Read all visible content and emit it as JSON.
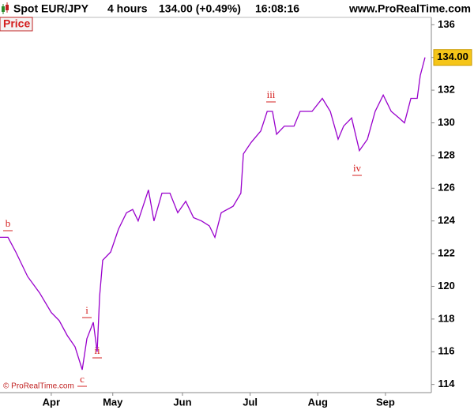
{
  "header": {
    "instrument": "Spot EUR/JPY",
    "timeframe": "4 hours",
    "quote": "134.00 (+0.49%)",
    "time": "16:08:16",
    "site": "www.ProRealTime.com"
  },
  "footer": "© ProRealTime.com",
  "chart_data": {
    "type": "line",
    "x": [
      0,
      3.9,
      7.7,
      13.5,
      19.3,
      25,
      28.9,
      32.8,
      36.6,
      40.1,
      42.4,
      45.5,
      47.4,
      48.6,
      50.1,
      54,
      57.8,
      61.7,
      64.7,
      67.4,
      72.4,
      75.1,
      79,
      82.9,
      86.7,
      90.6,
      94.4,
      98.3,
      102.1,
      104.8,
      107.9,
      113.7,
      117.5,
      118.7,
      122.5,
      127.2,
      130.3,
      132.9,
      134.9,
      138.7,
      143.4,
      146.4,
      152.2,
      157.2,
      161.1,
      164.9,
      167.6,
      171.5,
      175.3,
      179.2,
      183,
      186.9,
      190.8,
      194.6,
      197.3,
      200.4,
      203.5,
      205,
      207.3
    ],
    "series": [
      {
        "name": "Price",
        "color": "#9900cc",
        "values": [
          123.0,
          123.0,
          122.1,
          120.6,
          119.6,
          118.4,
          117.9,
          117.0,
          116.3,
          114.9,
          116.8,
          117.8,
          116.0,
          119.4,
          121.6,
          122.1,
          123.5,
          124.5,
          124.7,
          124.0,
          125.9,
          124.0,
          125.7,
          125.7,
          124.5,
          125.2,
          124.2,
          124.0,
          123.7,
          123.0,
          124.5,
          124.9,
          125.7,
          128.1,
          128.8,
          129.5,
          130.7,
          130.7,
          129.3,
          129.8,
          129.8,
          130.7,
          130.7,
          131.5,
          130.7,
          129.0,
          129.8,
          130.3,
          128.3,
          129.0,
          130.7,
          131.7,
          130.7,
          130.3,
          130.0,
          131.5,
          131.5,
          132.9,
          134.0
        ]
      }
    ],
    "last_value_label": "134.00",
    "annotations": [
      "b",
      "c",
      "i",
      "ii",
      "iii",
      "iv"
    ],
    "xlim": [
      0,
      210
    ],
    "xticks": [
      {
        "value": 25,
        "label": "Apr"
      },
      {
        "value": 55,
        "label": "May"
      },
      {
        "value": 89,
        "label": "Jun"
      },
      {
        "value": 122,
        "label": "Jul"
      },
      {
        "value": 155,
        "label": "Aug"
      },
      {
        "value": 188,
        "label": "Sep"
      }
    ],
    "ylim": [
      113.5,
      136.45
    ],
    "yticks": [
      114,
      116,
      118,
      120,
      122,
      124,
      126,
      128,
      130,
      132,
      134,
      136
    ],
    "grid": false
  }
}
